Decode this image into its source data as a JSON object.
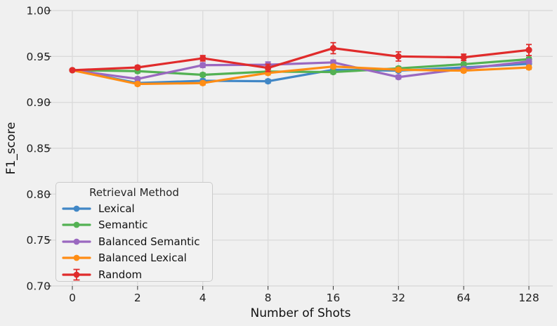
{
  "figure": {
    "background": "#F0F0F0",
    "legend_background": "#F2F2F2",
    "grid_color": "#DBDBDB",
    "tick_color": "#333333",
    "text_color": "#1F1F1F"
  },
  "chart_data": {
    "type": "line",
    "title": "",
    "xlabel": "Number of Shots",
    "ylabel": "F1_score",
    "x_categories": [
      "0",
      "2",
      "4",
      "8",
      "16",
      "32",
      "64",
      "128"
    ],
    "y_ticks": [
      0.7,
      0.75,
      0.8,
      0.85,
      0.9,
      0.95,
      1.0
    ],
    "y_tick_labels": [
      "0.70",
      "0.75",
      "0.80",
      "0.85",
      "0.90",
      "0.95",
      "1.00"
    ],
    "ylim": [
      0.7,
      1.0
    ],
    "grid": true,
    "legend": {
      "title": "Retrieval Method",
      "position": "lower left"
    },
    "series": [
      {
        "name": "Lexical",
        "color": "#4187C6",
        "values": [
          0.935,
          0.921,
          0.9235,
          0.923,
          0.9355,
          0.9345,
          0.938,
          0.942
        ],
        "errors": [
          0.0012,
          0.002,
          0.002,
          0.002,
          0.002,
          0.002,
          0.002,
          0.002
        ],
        "errorbar_glyph": false
      },
      {
        "name": "Semantic",
        "color": "#53B153",
        "values": [
          0.935,
          0.934,
          0.93,
          0.9335,
          0.933,
          0.937,
          0.9415,
          0.947
        ],
        "errors": [
          0.0012,
          0.002,
          0.002,
          0.002,
          0.002,
          0.002,
          0.002,
          0.002
        ],
        "errorbar_glyph": false
      },
      {
        "name": "Balanced Semantic",
        "color": "#9A68C0",
        "values": [
          0.935,
          0.9255,
          0.9405,
          0.941,
          0.9435,
          0.9275,
          0.9365,
          0.9445
        ],
        "errors": [
          0.0012,
          0.002,
          0.0025,
          0.003,
          0.0025,
          0.002,
          0.002,
          0.0025
        ],
        "errorbar_glyph": false
      },
      {
        "name": "Balanced Lexical",
        "color": "#FF8D15",
        "values": [
          0.935,
          0.92,
          0.921,
          0.932,
          0.939,
          0.9355,
          0.9345,
          0.938
        ],
        "errors": [
          0.0012,
          0.002,
          0.002,
          0.002,
          0.002,
          0.002,
          0.002,
          0.002
        ],
        "errorbar_glyph": false
      },
      {
        "name": "Random",
        "color": "#E02B2B",
        "values": [
          0.935,
          0.938,
          0.948,
          0.9375,
          0.959,
          0.95,
          0.949,
          0.957
        ],
        "errors": [
          0.0012,
          0.002,
          0.003,
          0.004,
          0.006,
          0.005,
          0.0035,
          0.006
        ],
        "errorbar_glyph": true
      }
    ]
  }
}
